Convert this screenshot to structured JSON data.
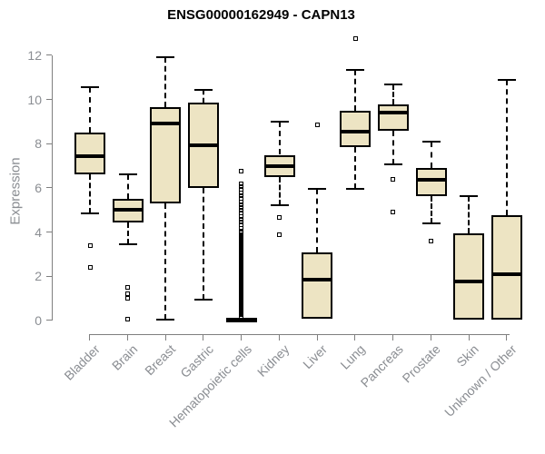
{
  "header": {
    "title": "ENSG00000162949 - CAPN13"
  },
  "chart_data": {
    "type": "boxplot",
    "title": "ENSG00000162949 - CAPN13",
    "ylabel": "Expression",
    "xlabel": "",
    "ylim": [
      0,
      12
    ],
    "yticks": [
      0,
      2,
      4,
      6,
      8,
      10,
      12
    ],
    "grid": "off",
    "legend": "none",
    "categories": [
      "Bladder",
      "Brain",
      "Breast",
      "Gastric",
      "Hematopoietic cells",
      "Kidney",
      "Liver",
      "Lung",
      "Pancreas",
      "Prostate",
      "Skin",
      "Unknown / Other"
    ],
    "series": [
      {
        "name": "Bladder",
        "whisker_low": 4.85,
        "q1": 6.6,
        "median": 7.45,
        "q3": 8.5,
        "whisker_high": 10.55,
        "outliers": [
          3.4,
          2.4
        ]
      },
      {
        "name": "Brain",
        "whisker_low": 3.45,
        "q1": 4.45,
        "median": 5.0,
        "q3": 5.5,
        "whisker_high": 6.6,
        "outliers": [
          1.5,
          1.2,
          1.0,
          0.05
        ]
      },
      {
        "name": "Breast",
        "whisker_low": 0.05,
        "q1": 5.3,
        "median": 8.9,
        "q3": 9.65,
        "whisker_high": 11.9,
        "outliers": []
      },
      {
        "name": "Gastric",
        "whisker_low": 0.95,
        "q1": 6.0,
        "median": 7.95,
        "q3": 9.85,
        "whisker_high": 10.45,
        "outliers": []
      },
      {
        "name": "Hematopoietic cells",
        "whisker_low": 0.0,
        "q1": 0.0,
        "median": 0.03,
        "q3": 0.07,
        "whisker_high": 0.1,
        "outliers": [
          6.78,
          6.18,
          6.05,
          5.92,
          5.78,
          5.65,
          5.52,
          5.38,
          5.25,
          5.12,
          4.98,
          4.85,
          4.72,
          4.58,
          4.45,
          4.32,
          4.18,
          4.05,
          3.95,
          3.9,
          3.85,
          3.8,
          3.75,
          3.7,
          3.65,
          3.6,
          3.55,
          3.5,
          3.45,
          3.4,
          3.35,
          3.3,
          3.25,
          3.2,
          3.15,
          3.1,
          3.05,
          3,
          2.95,
          2.9,
          2.85,
          2.8,
          2.75,
          2.7,
          2.65,
          2.6,
          2.55,
          2.5,
          2.45,
          2.4,
          2.35,
          2.3,
          2.25,
          2.2,
          2.15,
          2.1,
          2.05,
          2,
          1.95,
          1.9,
          1.85,
          1.8,
          1.75,
          1.7,
          1.65,
          1.6,
          1.55,
          1.5,
          1.45,
          1.4,
          1.35,
          1.3,
          1.25,
          1.2,
          1.15,
          1.1,
          1.05,
          1,
          0.95,
          0.9,
          0.85,
          0.8,
          0.75,
          0.7,
          0.65,
          0.6,
          0.55,
          0.5,
          0.45,
          0.4,
          0.35,
          0.3,
          0.25,
          0.2,
          0.15
        ]
      },
      {
        "name": "Kidney",
        "whisker_low": 5.2,
        "q1": 6.5,
        "median": 7.0,
        "q3": 7.5,
        "whisker_high": 9.0,
        "outliers": [
          4.65,
          3.9
        ]
      },
      {
        "name": "Liver",
        "whisker_low": 0.1,
        "q1": 0.1,
        "median": 1.85,
        "q3": 3.1,
        "whisker_high": 5.95,
        "outliers": [
          8.85
        ]
      },
      {
        "name": "Lung",
        "whisker_low": 5.95,
        "q1": 7.85,
        "median": 8.55,
        "q3": 9.5,
        "whisker_high": 11.35,
        "outliers": [
          12.75
        ]
      },
      {
        "name": "Pancreas",
        "whisker_low": 7.05,
        "q1": 8.6,
        "median": 9.4,
        "q3": 9.8,
        "whisker_high": 10.7,
        "outliers": [
          6.4,
          4.9
        ]
      },
      {
        "name": "Prostate",
        "whisker_low": 4.4,
        "q1": 5.65,
        "median": 6.35,
        "q3": 6.9,
        "whisker_high": 8.1,
        "outliers": [
          3.6
        ]
      },
      {
        "name": "Skin",
        "whisker_low": 0.05,
        "q1": 0.05,
        "median": 1.75,
        "q3": 3.95,
        "whisker_high": 5.65,
        "outliers": []
      },
      {
        "name": "Unknown / Other",
        "whisker_low": 0.05,
        "q1": 0.05,
        "median": 2.1,
        "q3": 4.75,
        "whisker_high": 10.9,
        "outliers": []
      }
    ],
    "colors": {
      "box_fill": "#EDE4C3",
      "box_line": "#000000",
      "median_line": "#000000",
      "axis_line": "#7F7F7F",
      "axis_text": "#8A8D92",
      "title_text": "#000000",
      "background": "#FFFFFF"
    }
  }
}
